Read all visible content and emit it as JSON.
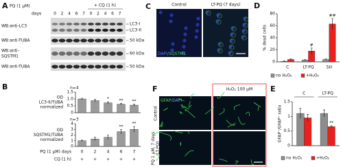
{
  "panels": {
    "A": {
      "label": "A",
      "pq": "PQ (1 μM)",
      "days": "days",
      "cq": "+ CQ (1 h)",
      "lanes": [
        "0",
        "2",
        "4",
        "6",
        "7",
        "0",
        "2",
        "4",
        "6",
        "7"
      ],
      "blots": [
        {
          "label": [
            "WB:anti-LC3"
          ],
          "markers": [
            "LC3-I",
            "LC3-II"
          ]
        },
        {
          "label": [
            "WB:anti-TUBA"
          ],
          "markers": [
            "50 kDa"
          ]
        },
        {
          "label": [
            "WB:anti-",
            "SQSTM1"
          ],
          "markers": [
            "60 kDa"
          ]
        },
        {
          "label": [
            "WB:anti-TUBA"
          ],
          "markers": [
            "50 kDa"
          ]
        }
      ]
    },
    "B": {
      "label": "B",
      "cq_label": "CQ (1 h)",
      "cq": [
        "+",
        "+",
        "+",
        "+",
        "+"
      ]
    },
    "C": {
      "label": "C",
      "columns": [
        "Control",
        "LT-PQ (7 days)"
      ],
      "stain": [
        "DAPI/",
        "SQSTM1"
      ]
    },
    "D": {
      "label": "D"
    },
    "E": {
      "label": "E"
    },
    "F": {
      "label": "F",
      "stain": [
        "GFAP/",
        "DAPI"
      ],
      "column": "H₂O₂ 100 μM",
      "rows": [
        [
          "Control"
        ],
        [
          "PQ 1 μM, 7 days",
          "(LT-PQ)"
        ]
      ]
    }
  },
  "chart_data": [
    {
      "type": "bar",
      "ylabel": [
        "OD",
        "LC3-II/TUBA",
        "normalized"
      ],
      "annotation": "n=4",
      "ylim": [
        0,
        1.5
      ],
      "yticks": [
        0,
        0.5,
        {
          "value": 1,
          "label": "1.0"
        },
        1.5
      ],
      "series": [
        {
          "color": "#9a9a9a",
          "values": [
            1,
            0.88,
            0.72,
            0.62,
            0.55
          ],
          "errors": [
            0.05,
            0.1,
            0.08,
            0.06,
            0.07
          ],
          "annotations": [
            null,
            null,
            "*",
            "**",
            "**"
          ]
        }
      ]
    },
    {
      "type": "bar",
      "ylabel": [
        "OD",
        "SQSTM1/TUBA",
        "normalized"
      ],
      "annotation": "n=3",
      "xlabel": "PQ (1 μM) days",
      "categories": [
        "0",
        "2",
        "4",
        "6",
        "7"
      ],
      "ylim": [
        0,
        4
      ],
      "yticks": [
        0,
        1,
        2,
        3,
        4
      ],
      "series": [
        {
          "color": "#9a9a9a",
          "values": [
            1,
            1.3,
            1.6,
            2.6,
            3.0
          ],
          "errors": [
            0.1,
            0.3,
            0.4,
            0.4,
            0.5
          ],
          "annotations": [
            null,
            null,
            null,
            "**",
            "**"
          ]
        }
      ]
    },
    {
      "type": "bar",
      "ylabel": "% dead cells",
      "categories": [
        "C",
        "LT-PQ",
        "SH"
      ],
      "ylim": [
        0,
        80
      ],
      "yticks": [
        0,
        20,
        40,
        60,
        80
      ],
      "legend": "bottom",
      "series": [
        {
          "name": "no H₂O₂",
          "color": "#8c8c8c",
          "values": [
            1,
            3,
            4
          ],
          "errors": [
            0.5,
            1,
            1
          ],
          "annotations": [
            null,
            null,
            null
          ]
        },
        {
          "name": "+H₂O₂",
          "color": "#e8211e",
          "values": [
            4,
            18,
            63
          ],
          "errors": [
            1,
            5,
            9
          ],
          "annotations": [
            null,
            "#",
            "##"
          ]
        }
      ]
    },
    {
      "type": "bar",
      "ylabel": "GFAP⁻/GFAP⁺ ratio",
      "categories": [
        "C",
        "LT-PQ"
      ],
      "x_labels": "top",
      "ylim": [
        0,
        1.5
      ],
      "yticks": [
        0,
        0.5,
        1,
        1.5
      ],
      "legend": "bottom",
      "series": [
        {
          "name": "no H₂O₂",
          "color": "#8c8c8c",
          "values": [
            1.1,
            1.1
          ],
          "errors": [
            0.18,
            0.12
          ],
          "annotations": [
            null,
            null
          ]
        },
        {
          "name": "+H₂O₂",
          "color": "#e8211e",
          "values": [
            0.95,
            0.65
          ],
          "errors": [
            0.12,
            0.03
          ],
          "annotations": [
            null,
            "**"
          ]
        }
      ]
    }
  ]
}
